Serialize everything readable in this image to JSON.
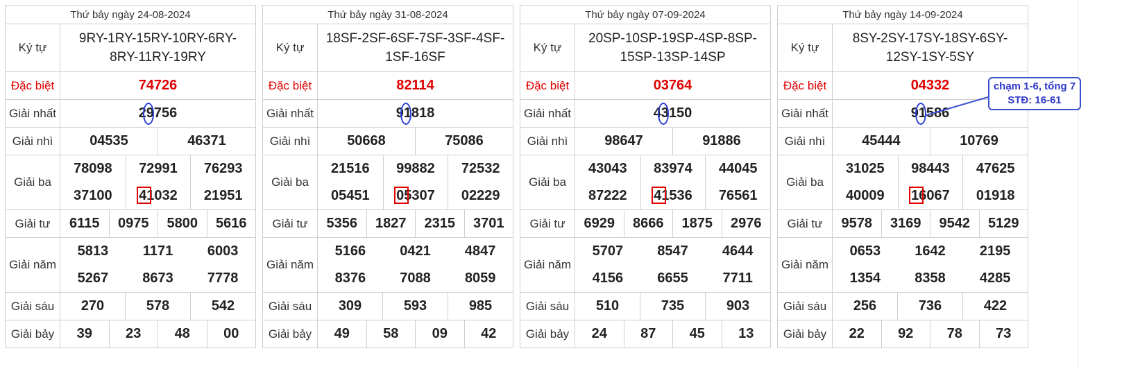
{
  "labels": {
    "ky_tu": "Ký tự",
    "dac_biet": "Đặc biệt",
    "giai_nhat": "Giải nhất",
    "giai_nhi": "Giải nhì",
    "giai_ba": "Giải ba",
    "giai_tu": "Giải tư",
    "giai_nam": "Giải năm",
    "giai_sau": "Giải sáu",
    "giai_bay": "Giải bảy"
  },
  "tables": [
    {
      "date": "Thứ bảy ngày 24-08-2024",
      "ky_tu_line1": "9RY-1RY-15RY-10RY-6RY-",
      "ky_tu_line2": "8RY-11RY-19RY",
      "dac_biet": "74726",
      "giai_nhat": "29756",
      "giai_nhi": [
        "04535",
        "46371"
      ],
      "giai_ba": [
        "78098",
        "72991",
        "76293",
        "37100",
        "41032",
        "21951"
      ],
      "giai_tu": [
        "6115",
        "0975",
        "5800",
        "5616"
      ],
      "giai_nam": [
        "5813",
        "1171",
        "6003",
        "5267",
        "8673",
        "7778"
      ],
      "giai_sau": [
        "270",
        "578",
        "542"
      ],
      "giai_bay": [
        "39",
        "23",
        "48",
        "00"
      ]
    },
    {
      "date": "Thứ bảy ngày 31-08-2024",
      "ky_tu_line1": "18SF-2SF-6SF-7SF-3SF-4SF-",
      "ky_tu_line2": "1SF-16SF",
      "dac_biet": "82114",
      "giai_nhat": "91818",
      "giai_nhi": [
        "50668",
        "75086"
      ],
      "giai_ba": [
        "21516",
        "99882",
        "72532",
        "05451",
        "05307",
        "02229"
      ],
      "giai_tu": [
        "5356",
        "1827",
        "2315",
        "3701"
      ],
      "giai_nam": [
        "5166",
        "0421",
        "4847",
        "8376",
        "7088",
        "8059"
      ],
      "giai_sau": [
        "309",
        "593",
        "985"
      ],
      "giai_bay": [
        "49",
        "58",
        "09",
        "42"
      ]
    },
    {
      "date": "Thứ bảy ngày 07-09-2024",
      "ky_tu_line1": "20SP-10SP-19SP-4SP-8SP-",
      "ky_tu_line2": "15SP-13SP-14SP",
      "dac_biet": "03764",
      "giai_nhat": "43150",
      "giai_nhi": [
        "98647",
        "91886"
      ],
      "giai_ba": [
        "43043",
        "83974",
        "44045",
        "87222",
        "41536",
        "76561"
      ],
      "giai_tu": [
        "6929",
        "8666",
        "1875",
        "2976"
      ],
      "giai_nam": [
        "5707",
        "8547",
        "4644",
        "4156",
        "6655",
        "7711"
      ],
      "giai_sau": [
        "510",
        "735",
        "903"
      ],
      "giai_bay": [
        "24",
        "87",
        "45",
        "13"
      ]
    },
    {
      "date": "Thứ bảy ngày 14-09-2024",
      "ky_tu_line1": "8SY-2SY-17SY-18SY-6SY-",
      "ky_tu_line2": "12SY-1SY-5SY",
      "dac_biet": "04332",
      "giai_nhat": "91586",
      "giai_nhi": [
        "45444",
        "10769"
      ],
      "giai_ba": [
        "31025",
        "98443",
        "47625",
        "40009",
        "16067",
        "01918"
      ],
      "giai_tu": [
        "9578",
        "3169",
        "9542",
        "5129"
      ],
      "giai_nam": [
        "0653",
        "1642",
        "2195",
        "1354",
        "8358",
        "4285"
      ],
      "giai_sau": [
        "256",
        "736",
        "422"
      ],
      "giai_bay": [
        "22",
        "92",
        "78",
        "73"
      ]
    }
  ],
  "callout": {
    "line1": "chạm 1-6, tổng 7",
    "line2": "STĐ: 16-61"
  },
  "colors": {
    "special_red": "#e00000",
    "oval_blue": "#2a3fd6",
    "box_red": "#e00000"
  }
}
